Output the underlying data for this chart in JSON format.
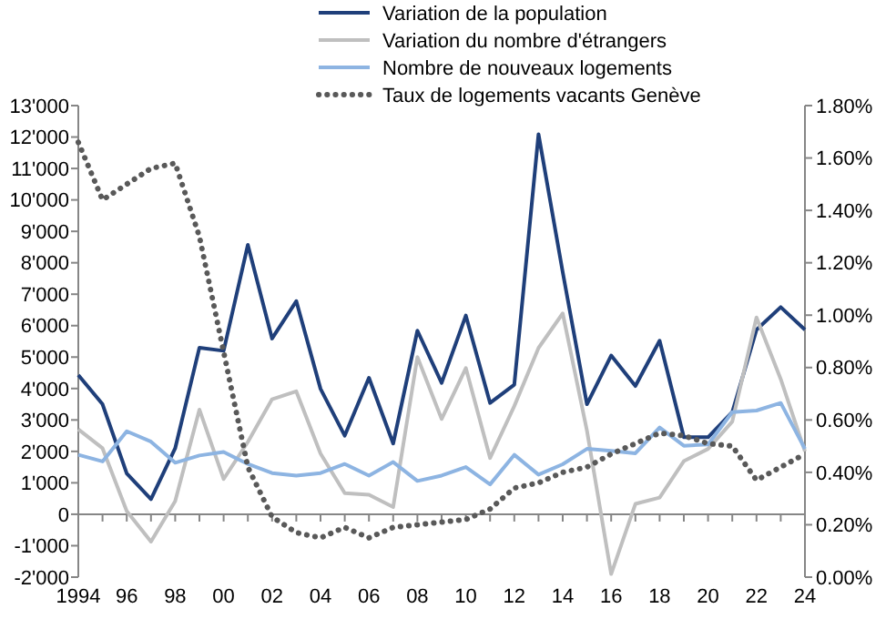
{
  "chart_data": {
    "type": "line",
    "x": [
      1994,
      1995,
      1996,
      1997,
      1998,
      1999,
      2000,
      2001,
      2002,
      2003,
      2004,
      2005,
      2006,
      2007,
      2008,
      2009,
      2010,
      2011,
      2012,
      2013,
      2014,
      2015,
      2016,
      2017,
      2018,
      2019,
      2020,
      2021,
      2022,
      2023,
      2024
    ],
    "series": [
      {
        "name": "Variation de la population",
        "color": "#1f3f7a",
        "values": [
          4430,
          3500,
          1300,
          480,
          2100,
          5300,
          5200,
          8570,
          5590,
          6780,
          3990,
          2500,
          4340,
          2250,
          5840,
          4180,
          6320,
          3540,
          4120,
          12090,
          7700,
          3500,
          5050,
          4080,
          5520,
          2450,
          2450,
          3250,
          5870,
          6590,
          5870
        ]
      },
      {
        "name": "Variation du nombre d'étrangers",
        "color": "#bfbfbf",
        "values": [
          2700,
          2100,
          100,
          -870,
          420,
          3330,
          1120,
          2300,
          3660,
          3910,
          1930,
          670,
          620,
          230,
          5000,
          3030,
          4650,
          1790,
          3440,
          5290,
          6390,
          2660,
          -1900,
          330,
          530,
          1690,
          2080,
          2950,
          6260,
          4300,
          2000
        ]
      },
      {
        "name": "Nombre de nouveaux logements",
        "color": "#8db4e2",
        "values": [
          1890,
          1680,
          2640,
          2310,
          1640,
          1870,
          1980,
          1600,
          1310,
          1230,
          1310,
          1600,
          1230,
          1660,
          1060,
          1230,
          1500,
          950,
          1890,
          1260,
          1590,
          2080,
          2020,
          1940,
          2760,
          2180,
          2220,
          3250,
          3300,
          3540,
          2080
        ]
      },
      {
        "name": "Taux de logements vacants Genève",
        "color": "#595959",
        "axis": "y2",
        "line_style": "dotted",
        "values": [
          1.66,
          1.44,
          1.5,
          1.56,
          1.58,
          1.3,
          0.86,
          0.42,
          0.23,
          0.17,
          0.15,
          0.19,
          0.15,
          0.19,
          0.2,
          0.21,
          0.22,
          0.26,
          0.34,
          0.36,
          0.4,
          0.42,
          0.47,
          0.51,
          0.55,
          0.54,
          0.51,
          0.5,
          0.37,
          0.42,
          0.47
        ]
      }
    ],
    "xlim": [
      1994,
      2024
    ],
    "xticks": [
      {
        "value": 1994,
        "label": "1994"
      },
      {
        "value": 1996,
        "label": "96"
      },
      {
        "value": 1998,
        "label": "98"
      },
      {
        "value": 2000,
        "label": "00"
      },
      {
        "value": 2002,
        "label": "02"
      },
      {
        "value": 2004,
        "label": "04"
      },
      {
        "value": 2006,
        "label": "06"
      },
      {
        "value": 2008,
        "label": "08"
      },
      {
        "value": 2010,
        "label": "10"
      },
      {
        "value": 2012,
        "label": "12"
      },
      {
        "value": 2014,
        "label": "14"
      },
      {
        "value": 2016,
        "label": "16"
      },
      {
        "value": 2018,
        "label": "18"
      },
      {
        "value": 2020,
        "label": "20"
      },
      {
        "value": 2022,
        "label": "22"
      },
      {
        "value": 2024,
        "label": "24"
      }
    ],
    "ylim": [
      -2000,
      13000
    ],
    "yticks": [
      {
        "value": -2000,
        "label": "-2'000"
      },
      {
        "value": -1000,
        "label": "-1'000"
      },
      {
        "value": 0,
        "label": "0"
      },
      {
        "value": 1000,
        "label": "1'000"
      },
      {
        "value": 2000,
        "label": "2'000"
      },
      {
        "value": 3000,
        "label": "3'000"
      },
      {
        "value": 4000,
        "label": "4'000"
      },
      {
        "value": 5000,
        "label": "5'000"
      },
      {
        "value": 6000,
        "label": "6'000"
      },
      {
        "value": 7000,
        "label": "7'000"
      },
      {
        "value": 8000,
        "label": "8'000"
      },
      {
        "value": 9000,
        "label": "9'000"
      },
      {
        "value": 10000,
        "label": "10'000"
      },
      {
        "value": 11000,
        "label": "11'000"
      },
      {
        "value": 12000,
        "label": "12'000"
      },
      {
        "value": 13000,
        "label": "13'000"
      }
    ],
    "y2lim": [
      0,
      1.8
    ],
    "y2ticks": [
      {
        "value": 0,
        "label": "0.00%"
      },
      {
        "value": 0.2,
        "label": "0.20%"
      },
      {
        "value": 0.4,
        "label": "0.40%"
      },
      {
        "value": 0.6,
        "label": "0.60%"
      },
      {
        "value": 0.8,
        "label": "0.80%"
      },
      {
        "value": 1.0,
        "label": "1.00%"
      },
      {
        "value": 1.2,
        "label": "1.20%"
      },
      {
        "value": 1.4,
        "label": "1.40%"
      },
      {
        "value": 1.6,
        "label": "1.60%"
      },
      {
        "value": 1.8,
        "label": "1.80%"
      }
    ],
    "legend": "top",
    "marker": "none"
  }
}
